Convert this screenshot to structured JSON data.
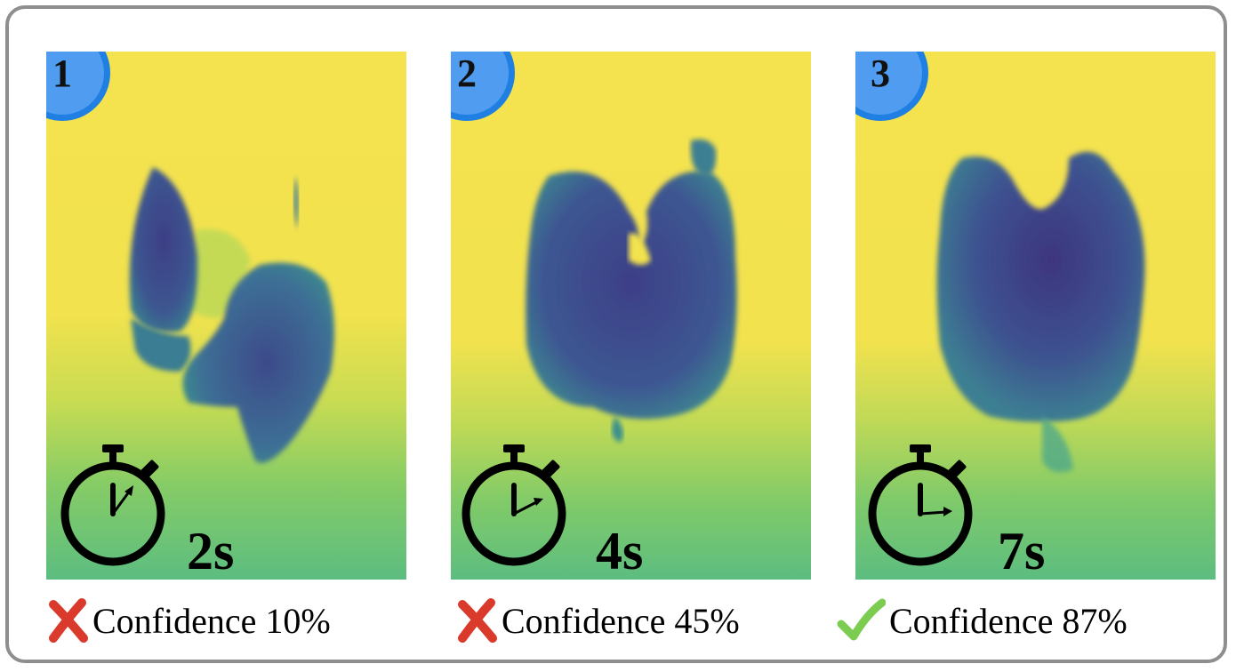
{
  "panels": [
    {
      "step": "1",
      "time": "2s",
      "status": "fail",
      "confidence_text": "Confidence 10%",
      "confidence": 10
    },
    {
      "step": "2",
      "time": "4s",
      "status": "fail",
      "confidence_text": "Confidence 45%",
      "confidence": 45
    },
    {
      "step": "3",
      "time": "7s",
      "status": "pass",
      "confidence_text": "Confidence 87%",
      "confidence": 87
    }
  ],
  "colors": {
    "badge_fill": "#4f9cf0",
    "badge_ring": "#1f7fe3",
    "fail_mark": "#d93a2b",
    "pass_mark": "#7ccc52",
    "background_yellow": "#f4e04d",
    "floor_green": "#5fbf7e",
    "object_blue": "#3f4a8a"
  },
  "icons": [
    "stopwatch-icon",
    "cross-icon",
    "check-icon"
  ]
}
